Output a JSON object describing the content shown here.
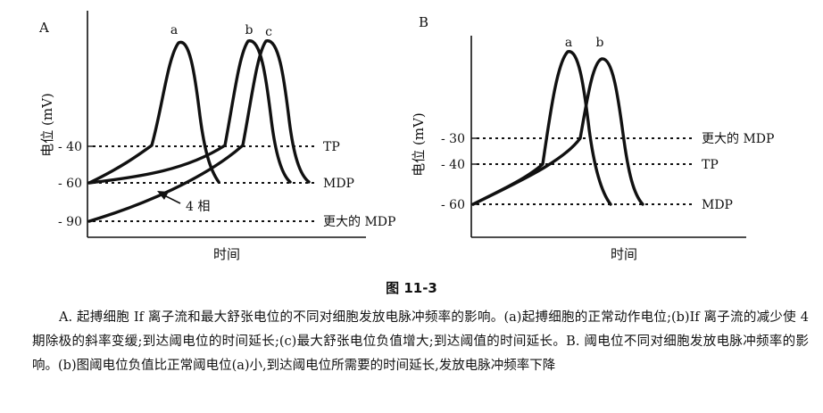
{
  "panel_a": {
    "label": "A",
    "ylabel": "电位 (mV)",
    "xlabel": "时间",
    "ticks": [
      "- 40",
      "- 60",
      "- 90"
    ],
    "lines": [
      "TP",
      "MDP",
      "更大的 MDP"
    ],
    "curves": [
      "a",
      "b",
      "c"
    ],
    "phase_label": "4 相"
  },
  "panel_b": {
    "label": "B",
    "ylabel": "电位 (mV)",
    "xlabel": "时间",
    "ticks": [
      "- 30",
      "- 40",
      "- 60"
    ],
    "lines": [
      "更大的 MDP",
      "TP",
      "MDP"
    ],
    "curves": [
      "a",
      "b"
    ]
  },
  "caption": {
    "title": "图 11-3",
    "text": "A. 起搏细胞 If 离子流和最大舒张电位的不同对细胞发放电脉冲频率的影响。(a)起搏细胞的正常动作电位;(b)If 离子流的减少使 4 期除极的斜率变缓;到达阈电位的时间延长;(c)最大舒张电位负值增大;到达阈值的时间延长。B. 阈电位不同对细胞发放电脉冲频率的影响。(b)图阈电位负值比正常阈电位(a)小,到达阈电位所需要的时间延长,发放电脉冲频率下降"
  }
}
